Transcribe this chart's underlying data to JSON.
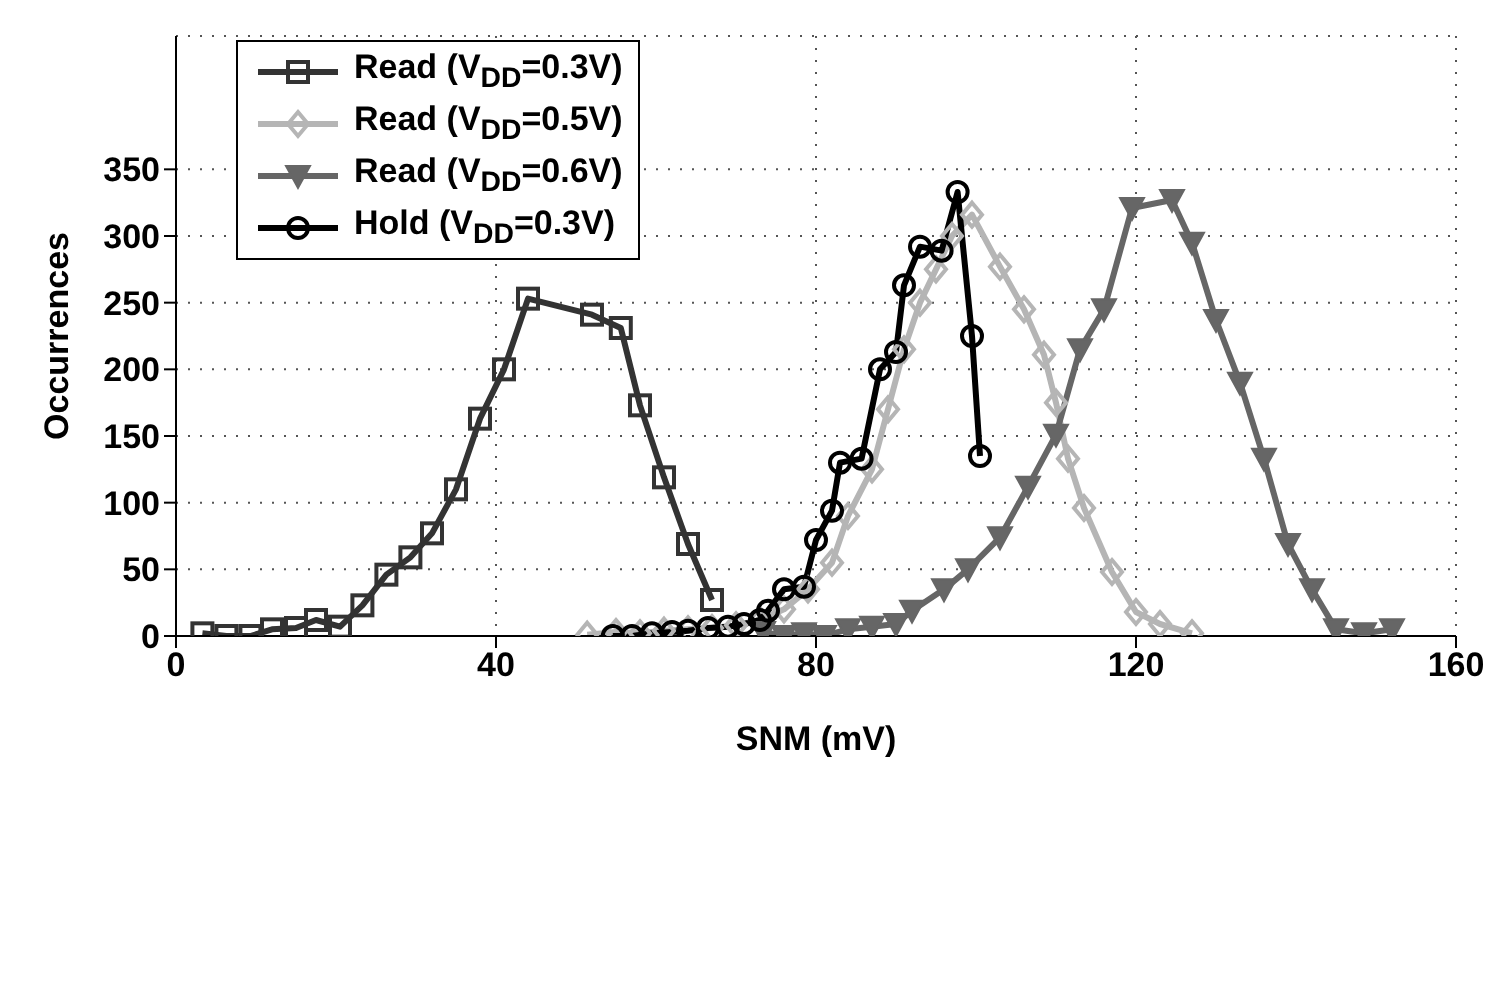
{
  "chart_data": {
    "type": "line",
    "xlabel": "SNM (mV)",
    "ylabel": "Occurrences",
    "xlim": [
      0,
      160
    ],
    "xticks": [
      0,
      40,
      80,
      120,
      160
    ],
    "ylim": [
      0,
      450
    ],
    "yticks": [
      0,
      50,
      100,
      150,
      200,
      250,
      300,
      350
    ],
    "grid": true,
    "legend": "top left",
    "line_style": "solid",
    "series": [
      {
        "name": "Read (V$_{DD}$=0.3V)",
        "color": "#333333",
        "marker": "square",
        "x": [
          3.3,
          6.3,
          9.3,
          12,
          15,
          17.5,
          20.5,
          23.3,
          26.3,
          29.3,
          32,
          35,
          38,
          41,
          44,
          52,
          55.6,
          58,
          61,
          64,
          67
        ],
        "values": [
          2,
          0,
          0,
          5,
          6,
          12,
          7,
          23,
          46,
          59,
          77,
          110,
          163,
          200,
          253,
          241,
          231,
          173,
          119,
          69,
          27
        ]
      },
      {
        "name": "Read (V$_{DD}$=0.5V)",
        "color": "#b5b5b5",
        "marker": "diamond",
        "x": [
          51.4,
          55,
          58,
          61,
          64,
          67,
          70,
          73,
          76,
          79,
          82,
          84,
          87,
          89,
          91,
          93,
          95,
          97,
          99.5,
          103,
          106,
          108.5,
          110,
          111.5,
          113.5,
          117,
          120,
          123,
          127
        ],
        "values": [
          1,
          3,
          2,
          4,
          5,
          6,
          8,
          12,
          20,
          35,
          55,
          90,
          125,
          170,
          215,
          250,
          275,
          300,
          316,
          277,
          245,
          211,
          175,
          133,
          96,
          48,
          18,
          9,
          2
        ]
      },
      {
        "name": "Read (V$_{DD}$=0.6V)",
        "color": "#666666",
        "marker": "triangle",
        "x": [
          73.4,
          76,
          78.5,
          81,
          84,
          87,
          90,
          92,
          96,
          99,
          103,
          106.5,
          110,
          113,
          116,
          119.5,
          124.5,
          127,
          130,
          133,
          136,
          139,
          142,
          145,
          148.5,
          152
        ],
        "values": [
          3,
          0,
          2,
          0,
          5,
          7,
          9,
          19,
          35,
          50,
          74,
          112,
          151,
          215,
          245,
          321,
          327,
          295,
          237,
          190,
          133,
          69,
          35,
          5,
          2,
          5
        ]
      },
      {
        "name": "Hold (V$_{DD}$=0.3V)",
        "color": "#000000",
        "marker": "circle",
        "x": [
          54.6,
          57,
          59.5,
          62,
          64,
          66.5,
          69,
          71,
          73,
          74,
          76,
          78.5,
          80,
          82,
          83,
          85.7,
          88,
          90,
          91,
          93,
          95.7,
          97.7,
          99.5,
          100.5
        ],
        "values": [
          0,
          0,
          2,
          3,
          4,
          6,
          7,
          9,
          12,
          19,
          35,
          37,
          72,
          94,
          130,
          133,
          200,
          213,
          263,
          292,
          289,
          333,
          225,
          135
        ]
      }
    ]
  }
}
